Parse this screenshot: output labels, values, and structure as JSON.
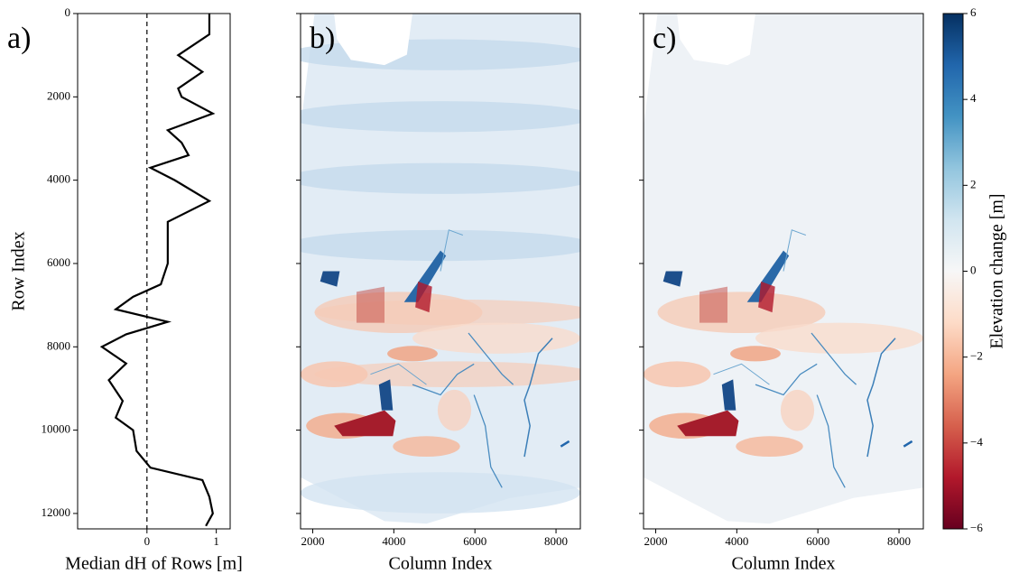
{
  "chart_data": [
    {
      "type": "line",
      "label": "a)",
      "xlabel": "Median dH of Rows [m]",
      "ylabel": "Row Index",
      "xlim": [
        -1,
        1.2
      ],
      "xticks": [
        0,
        1
      ],
      "ylim": [
        12370,
        0
      ],
      "yticks": [
        0,
        2000,
        4000,
        6000,
        8000,
        10000,
        12000
      ],
      "vline": 0,
      "series": [
        {
          "color": "#000000",
          "y": [
            0,
            500,
            1000,
            1400,
            1800,
            2000,
            2400,
            2800,
            3100,
            3400,
            3700,
            4000,
            4500,
            5000,
            5500,
            6000,
            6500,
            6800,
            7100,
            7400,
            7700,
            8000,
            8400,
            8800,
            9300,
            9700,
            10000,
            10500,
            10900,
            11200,
            11600,
            12000,
            12300
          ],
          "values": [
            0.9,
            0.9,
            0.45,
            0.8,
            0.45,
            0.5,
            0.95,
            0.3,
            0.5,
            0.6,
            0.05,
            0.4,
            0.9,
            0.3,
            0.3,
            0.3,
            0.2,
            -0.2,
            -0.45,
            0.3,
            -0.3,
            -0.65,
            -0.3,
            -0.55,
            -0.35,
            -0.45,
            -0.2,
            -0.15,
            0.05,
            0.8,
            0.9,
            0.95,
            0.85
          ]
        }
      ]
    },
    {
      "type": "heatmap",
      "label": "b)",
      "xlabel": "Column Index",
      "xlim": [
        1700,
        8600
      ],
      "xticks": [
        2000,
        4000,
        6000,
        8000
      ],
      "ylim": [
        12370,
        0
      ],
      "yticks": [
        0,
        2000,
        4000,
        6000,
        8000,
        10000,
        12000
      ],
      "banding": true
    },
    {
      "type": "heatmap",
      "label": "c)",
      "xlabel": "Column Index",
      "xlim": [
        1700,
        8600
      ],
      "xticks": [
        2000,
        4000,
        6000,
        8000
      ],
      "ylim": [
        12370,
        0
      ],
      "yticks": [
        0,
        2000,
        4000,
        6000,
        8000,
        10000,
        12000
      ],
      "banding": false
    },
    {
      "type": "colorbar",
      "label": "Elevation change [m]",
      "ylim": [
        -6,
        6
      ],
      "yticks": [
        {
          "value": -6,
          "label": "−6"
        },
        {
          "value": -4,
          "label": "−4"
        },
        {
          "value": -2,
          "label": "−2"
        },
        0,
        2,
        4,
        6
      ]
    }
  ]
}
